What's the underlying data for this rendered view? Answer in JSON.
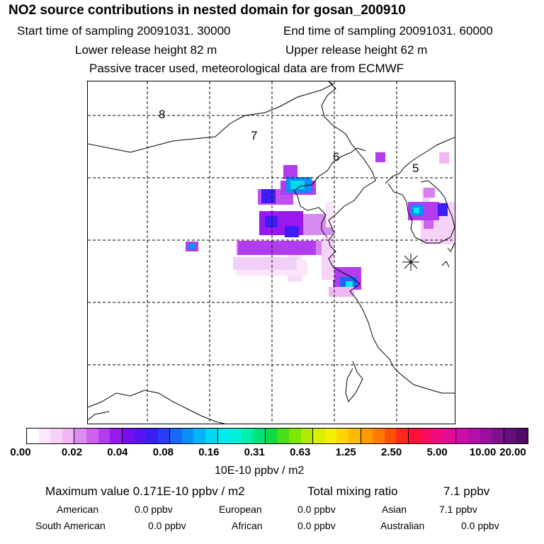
{
  "title": "NO2 source contributions in nested domain for gosan_200910",
  "sampling": {
    "start": "Start time of sampling 20091031. 30000",
    "end": "End time of sampling 20091031. 60000"
  },
  "release": {
    "lower": "Lower release height   82 m",
    "upper": "Upper release height   62 m"
  },
  "note": "Passive tracer used, meteorological data are from ECMWF",
  "map": {
    "region_labels": [
      "8",
      "7",
      "6",
      "5"
    ],
    "receptor_marker": "asterisk-icon"
  },
  "colorbar": {
    "colors": [
      "#ffffff",
      "#fbe8fb",
      "#f6d2f8",
      "#f0b5f5",
      "#de8cf0",
      "#cc62ee",
      "#b23cef",
      "#9a18f0",
      "#7a0bf2",
      "#5a14f4",
      "#3b1ef4",
      "#2a3cf5",
      "#1a66f7",
      "#0a8ef8",
      "#07b4f8",
      "#05d6f4",
      "#00ecee",
      "#00f3d6",
      "#00f0a8",
      "#00e37a",
      "#12d845",
      "#4ade1c",
      "#80e500",
      "#b0ea00",
      "#d8ef00",
      "#f5ef00",
      "#ffd600",
      "#ffb900",
      "#ff9b00",
      "#ff7a00",
      "#ff5200",
      "#ff2a1c",
      "#ff0f3a",
      "#fa0c64",
      "#f00a84",
      "#e30c9a",
      "#cc0ea8",
      "#b40fa8",
      "#9a109e",
      "#80108e",
      "#660f7c",
      "#4e0c66"
    ],
    "ticks": [
      "0.00",
      "0.02",
      "0.04",
      "0.08",
      "0.16",
      "0.31",
      "0.63",
      "1.25",
      "2.50",
      "5.00",
      "10.00",
      "20.00"
    ],
    "unit": "10E-10 ppbv / m2"
  },
  "summary": {
    "maximum_value": "Maximum value  0.171E-10 ppbv / m2",
    "total_mixing_label": "Total mixing ratio",
    "total_mixing_value": "7.1 ppbv",
    "regions": [
      {
        "name": "American",
        "value": "0.0 ppbv"
      },
      {
        "name": "European",
        "value": "0.0 ppbv"
      },
      {
        "name": "Asian",
        "value": "7.1 ppbv"
      },
      {
        "name": "South American",
        "value": "0.0 ppbv"
      },
      {
        "name": "African",
        "value": "0.0 ppbv"
      },
      {
        "name": "Australian",
        "value": "0.0 ppbv"
      }
    ]
  }
}
